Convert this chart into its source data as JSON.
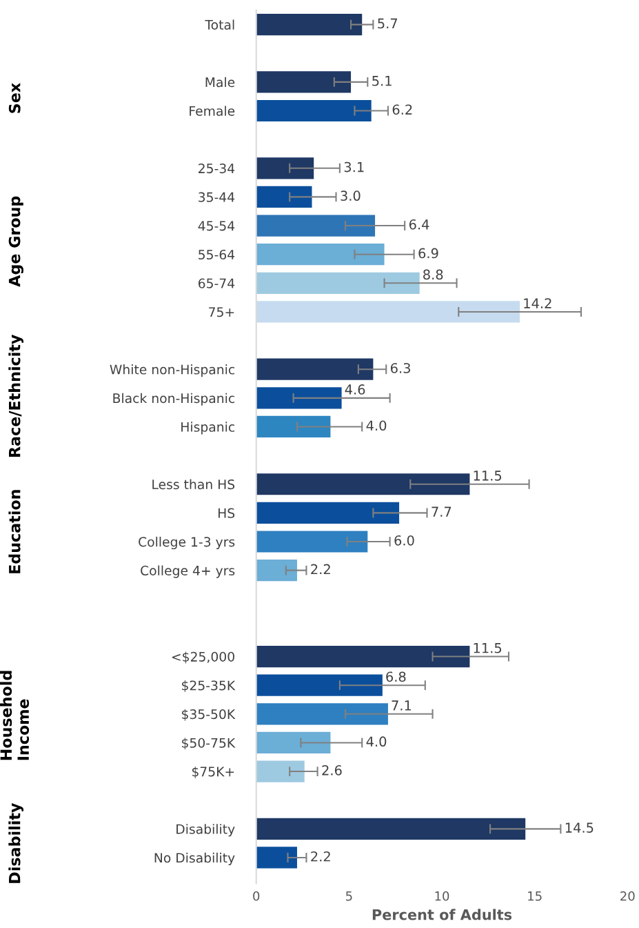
{
  "chart_data": {
    "type": "bar",
    "orientation": "horizontal",
    "xlabel": "Percent of Adults",
    "categories": [
      "Total",
      null,
      "Male",
      "Female",
      null,
      "25-34",
      "35-44",
      "45-54",
      "55-64",
      "65-74",
      "75+",
      null,
      "White non-Hispanic",
      "Black non-Hispanic",
      "Hispanic",
      null,
      "Less than HS",
      "HS",
      "College 1-3 yrs",
      "College 4+ yrs",
      null,
      null,
      "<$25,000",
      "$25-35K",
      "$35-50K",
      "$50-75K",
      "$75K+",
      null,
      "Disability",
      "No Disability"
    ],
    "values": [
      5.7,
      null,
      5.1,
      6.2,
      null,
      3.1,
      3.0,
      6.4,
      6.9,
      8.8,
      14.2,
      null,
      6.3,
      4.6,
      4.0,
      null,
      11.5,
      7.7,
      6.0,
      2.2,
      null,
      null,
      11.5,
      6.8,
      7.1,
      4.0,
      2.6,
      null,
      14.5,
      2.2
    ],
    "errors": [
      [
        5.1,
        6.3
      ],
      null,
      [
        4.2,
        6.0
      ],
      [
        5.3,
        7.1
      ],
      null,
      [
        1.8,
        4.5
      ],
      [
        1.8,
        4.3
      ],
      [
        4.8,
        8.0
      ],
      [
        5.3,
        8.5
      ],
      [
        6.9,
        10.8
      ],
      [
        10.9,
        17.5
      ],
      null,
      [
        5.5,
        7.0
      ],
      [
        2.0,
        7.2
      ],
      [
        2.2,
        5.7
      ],
      null,
      [
        8.3,
        14.7
      ],
      [
        6.3,
        9.2
      ],
      [
        4.9,
        7.2
      ],
      [
        1.6,
        2.7
      ],
      null,
      null,
      [
        9.5,
        13.6
      ],
      [
        4.5,
        9.1
      ],
      [
        4.8,
        9.5
      ],
      [
        2.4,
        5.7
      ],
      [
        1.8,
        3.3
      ],
      null,
      [
        12.6,
        16.4
      ],
      [
        1.7,
        2.7
      ]
    ],
    "colors": [
      "#1f3864",
      null,
      "#1f3864",
      "#0b4f9c",
      null,
      "#1f3864",
      "#0b4f9c",
      "#2e75b6",
      "#6baed6",
      "#9ecae1",
      "#c6dbef",
      null,
      "#1f3864",
      "#0b4f9c",
      "#2e86c1",
      null,
      "#1f3864",
      "#0b4f9c",
      "#2e80c0",
      "#6baed6",
      null,
      null,
      "#1f3864",
      "#0b4f9c",
      "#2e80c0",
      "#6baed6",
      "#9ecae1",
      null,
      "#1f3864",
      "#0b4f9c"
    ],
    "value_labels": [
      "5.7",
      null,
      "5.1",
      "6.2",
      null,
      "3.1",
      "3.0",
      "6.4",
      "6.9",
      "8.8",
      "14.2",
      null,
      "6.3",
      "4.6",
      "4.0",
      null,
      "11.5",
      "7.7",
      "6.0",
      "2.2",
      null,
      null,
      "11.5",
      "6.8",
      "7.1",
      "4.0",
      "2.6",
      null,
      "14.5",
      "2.2"
    ],
    "xlim": [
      0,
      20
    ],
    "xticks": [
      0,
      5,
      10,
      15,
      20
    ],
    "grid": false,
    "legend": false,
    "annotations": [
      "Sex",
      "Age Group",
      "Race/Ethnicity",
      "Education",
      "Household\nIncome",
      "Disability"
    ]
  }
}
